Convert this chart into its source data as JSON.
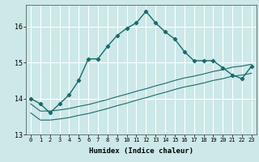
{
  "title": "",
  "xlabel": "Humidex (Indice chaleur)",
  "ylabel": "",
  "background_color": "#cce8e8",
  "grid_color": "#ffffff",
  "line_color": "#1a6b6b",
  "xlim": [
    -0.5,
    23.5
  ],
  "ylim": [
    13.0,
    16.6
  ],
  "yticks": [
    13,
    14,
    15,
    16
  ],
  "xticks": [
    0,
    1,
    2,
    3,
    4,
    5,
    6,
    7,
    8,
    9,
    10,
    11,
    12,
    13,
    14,
    15,
    16,
    17,
    18,
    19,
    20,
    21,
    22,
    23
  ],
  "curve_main": {
    "x": [
      0,
      1,
      2,
      3,
      4,
      5,
      6,
      7,
      8,
      9,
      10,
      11,
      12,
      13,
      14,
      15,
      16,
      17,
      18,
      19,
      20,
      21,
      22,
      23
    ],
    "y": [
      14.0,
      13.85,
      13.6,
      13.85,
      14.1,
      14.5,
      15.1,
      15.1,
      15.45,
      15.75,
      15.95,
      16.1,
      16.42,
      16.1,
      15.85,
      15.65,
      15.3,
      15.05,
      15.05,
      15.05,
      14.85,
      14.65,
      14.55,
      14.9
    ]
  },
  "curve_upper": {
    "x": [
      0,
      1,
      2,
      3,
      4,
      5,
      6,
      7,
      8,
      9,
      10,
      11,
      12,
      13,
      14,
      15,
      16,
      17,
      18,
      19,
      20,
      21,
      22,
      23
    ],
    "y": [
      13.85,
      13.65,
      13.65,
      13.68,
      13.72,
      13.78,
      13.83,
      13.9,
      13.97,
      14.05,
      14.12,
      14.2,
      14.27,
      14.35,
      14.42,
      14.5,
      14.57,
      14.62,
      14.68,
      14.75,
      14.8,
      14.87,
      14.9,
      14.95
    ]
  },
  "curve_lower": {
    "x": [
      0,
      1,
      2,
      3,
      4,
      5,
      6,
      7,
      8,
      9,
      10,
      11,
      12,
      13,
      14,
      15,
      16,
      17,
      18,
      19,
      20,
      21,
      22,
      23
    ],
    "y": [
      13.6,
      13.4,
      13.4,
      13.43,
      13.47,
      13.53,
      13.58,
      13.65,
      13.72,
      13.8,
      13.87,
      13.95,
      14.02,
      14.1,
      14.17,
      14.25,
      14.32,
      14.37,
      14.43,
      14.5,
      14.55,
      14.62,
      14.65,
      14.7
    ]
  }
}
